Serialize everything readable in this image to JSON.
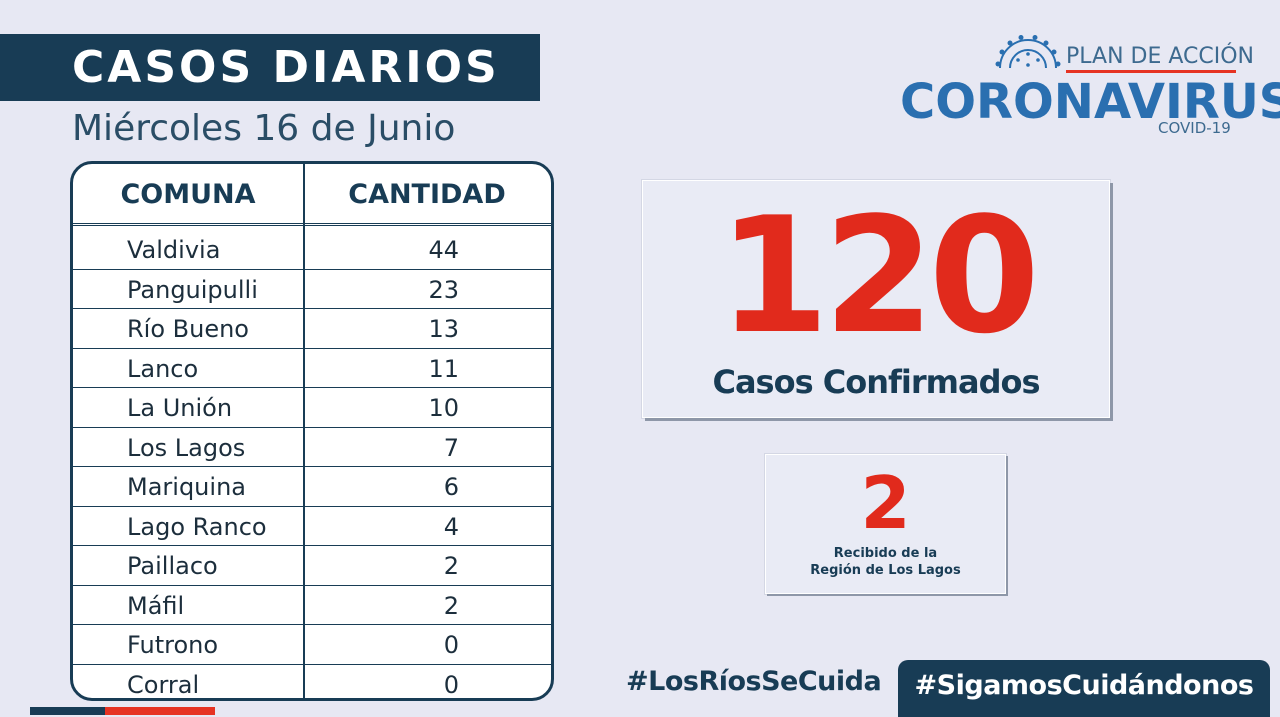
{
  "header": {
    "title": "CASOS DIARIOS",
    "date": "Miércoles 16 de Junio"
  },
  "logo": {
    "plan": "PLAN DE ACCIÓN",
    "main": "CORONAVIRUS",
    "sub": "COVID-19"
  },
  "table": {
    "columns": [
      "COMUNA",
      "CANTIDAD"
    ],
    "rows": [
      {
        "comuna": "Valdivia",
        "cantidad": "44"
      },
      {
        "comuna": "Panguipulli",
        "cantidad": "23"
      },
      {
        "comuna": "Río Bueno",
        "cantidad": "13"
      },
      {
        "comuna": "Lanco",
        "cantidad": "11"
      },
      {
        "comuna": "La Unión",
        "cantidad": "10"
      },
      {
        "comuna": "Los Lagos",
        "cantidad": "7"
      },
      {
        "comuna": "Mariquina",
        "cantidad": "6"
      },
      {
        "comuna": "Lago Ranco",
        "cantidad": "4"
      },
      {
        "comuna": "Paillaco",
        "cantidad": "2"
      },
      {
        "comuna": "Máfil",
        "cantidad": "2"
      },
      {
        "comuna": "Futrono",
        "cantidad": "0"
      },
      {
        "comuna": "Corral",
        "cantidad": "0"
      }
    ]
  },
  "confirmed": {
    "number": "120",
    "label": "Casos Confirmados"
  },
  "received": {
    "number": "2",
    "label_line1": "Recibido de la",
    "label_line2": "Región de Los Lagos"
  },
  "hashtags": {
    "first": "#LosRíosSeCuida",
    "second": "#SigamosCuidándonos"
  },
  "colors": {
    "navy": "#183c55",
    "red": "#e12a1c",
    "blue": "#2a6fb0",
    "background": "#e7e8f3"
  }
}
